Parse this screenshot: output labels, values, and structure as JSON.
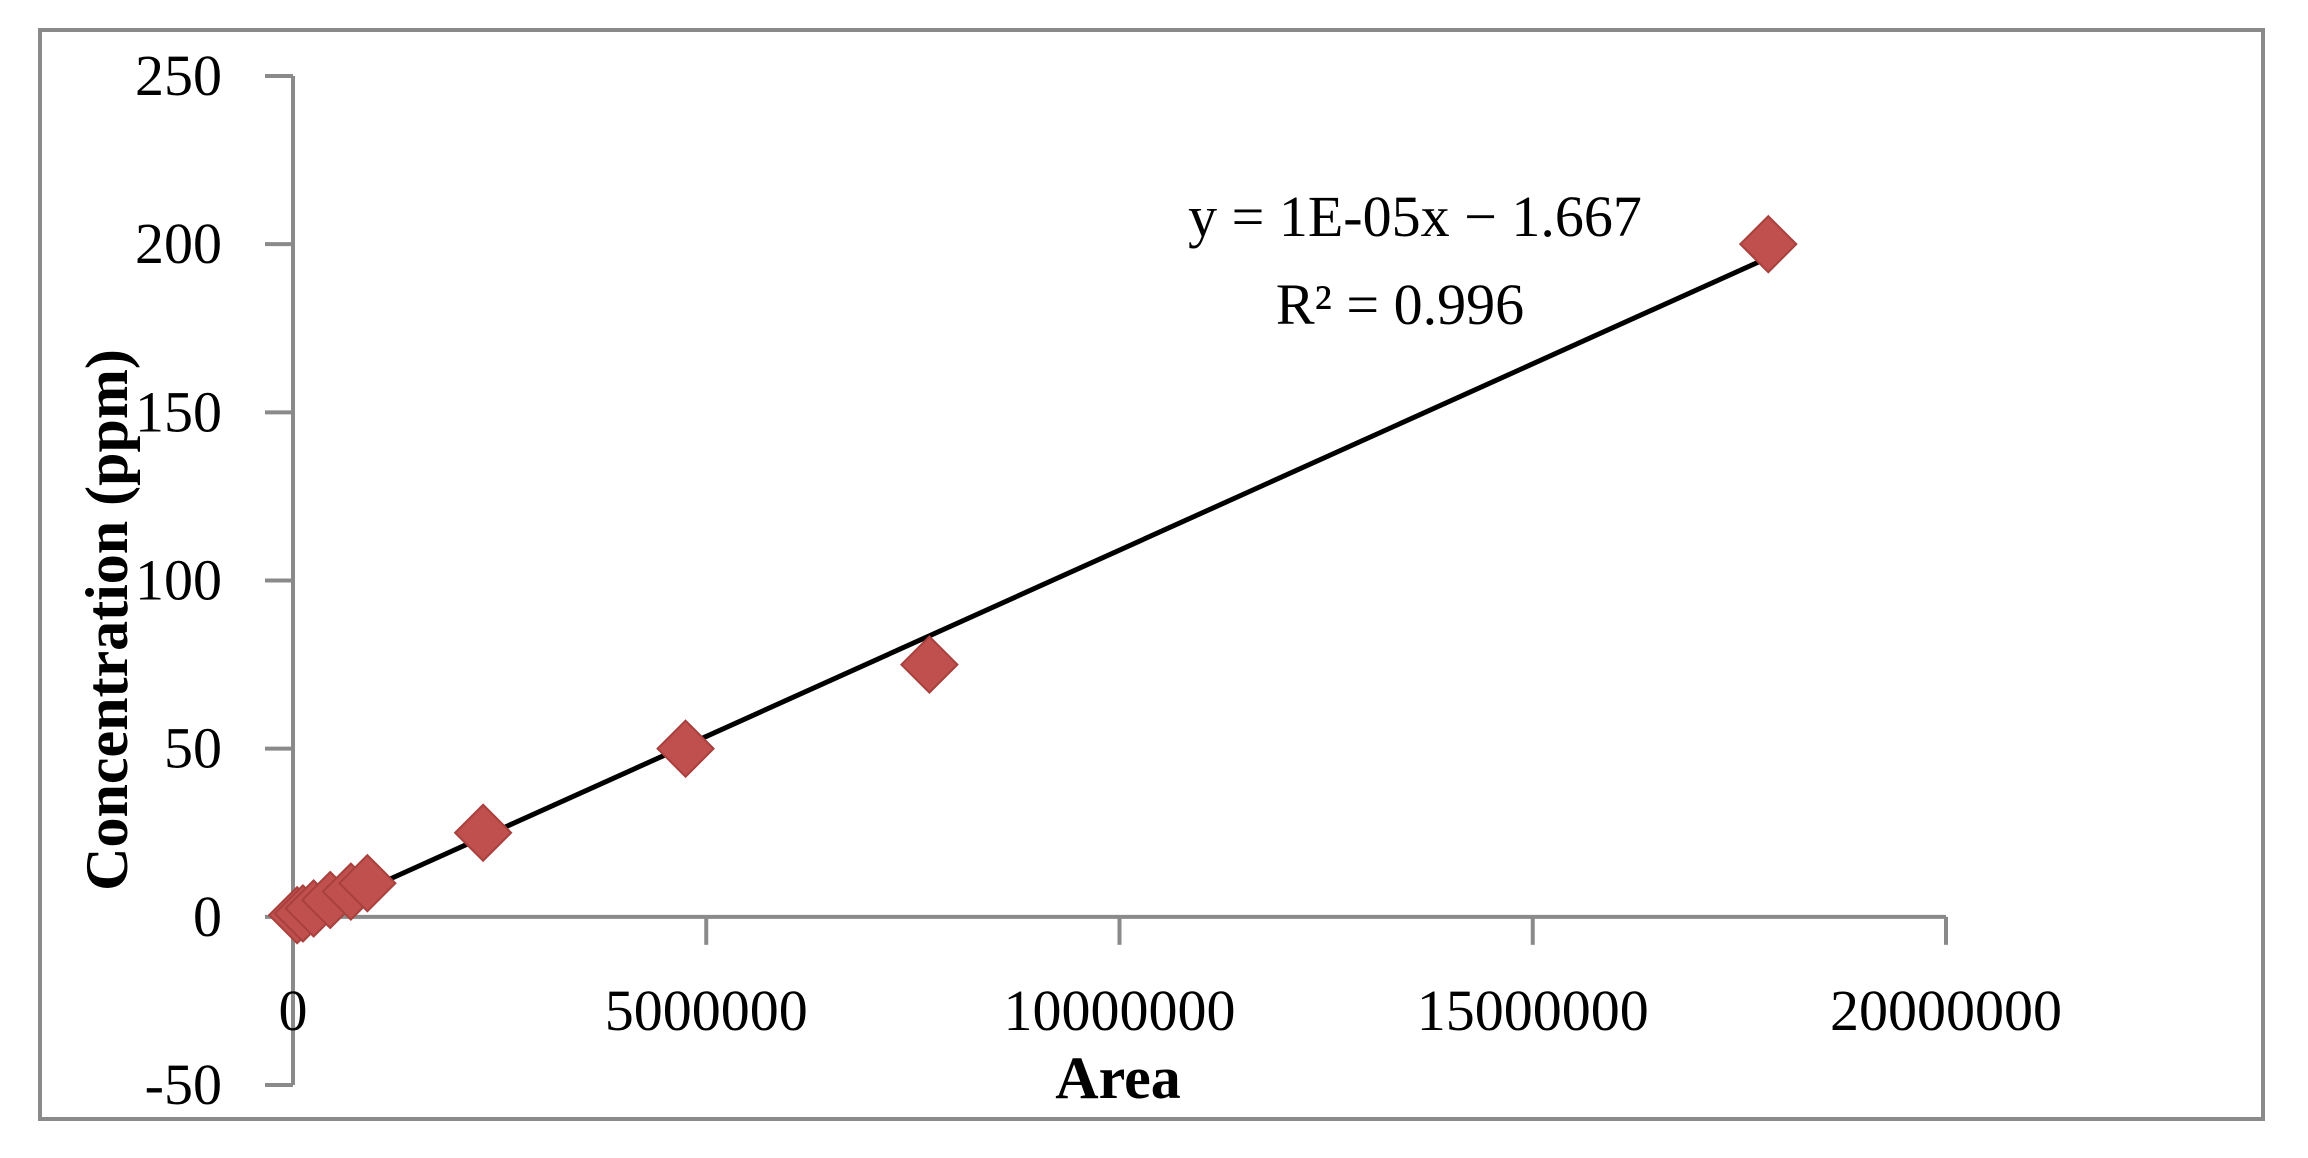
{
  "chart_data": {
    "type": "scatter",
    "xlabel": "Area",
    "ylabel": "Concentration (ppm)",
    "xlim": [
      0,
      20000000
    ],
    "ylim": [
      -50,
      250
    ],
    "x_ticks": [
      0,
      5000000,
      10000000,
      15000000,
      20000000
    ],
    "x_tick_labels": [
      "0",
      "5000000",
      "10000000",
      "15000000",
      "20000000"
    ],
    "y_ticks": [
      -50,
      0,
      50,
      100,
      150,
      200,
      250
    ],
    "y_tick_labels": [
      "-50",
      "0",
      "50",
      "100",
      "150",
      "200",
      "250"
    ],
    "grid": false,
    "legend": "none",
    "series": [
      {
        "points": [
          {
            "x": 50000,
            "y": 0.5
          },
          {
            "x": 120000,
            "y": 1
          },
          {
            "x": 250000,
            "y": 2.5
          },
          {
            "x": 450000,
            "y": 5
          },
          {
            "x": 700000,
            "y": 7.5
          },
          {
            "x": 900000,
            "y": 10
          },
          {
            "x": 2300000,
            "y": 25
          },
          {
            "x": 4750000,
            "y": 50
          },
          {
            "x": 7700000,
            "y": 75
          },
          {
            "x": 17850000,
            "y": 200
          }
        ],
        "marker": "diamond",
        "color": "#c0504d"
      }
    ],
    "trendline": {
      "type": "linear",
      "x_start": 50000,
      "x_end": 17850000,
      "y_start": -1.2,
      "y_end": 196,
      "color": "#000000"
    },
    "annotations": {
      "equation": "y = 1E-05x  − 1.667",
      "r_squared": "R² = 0.996"
    }
  }
}
